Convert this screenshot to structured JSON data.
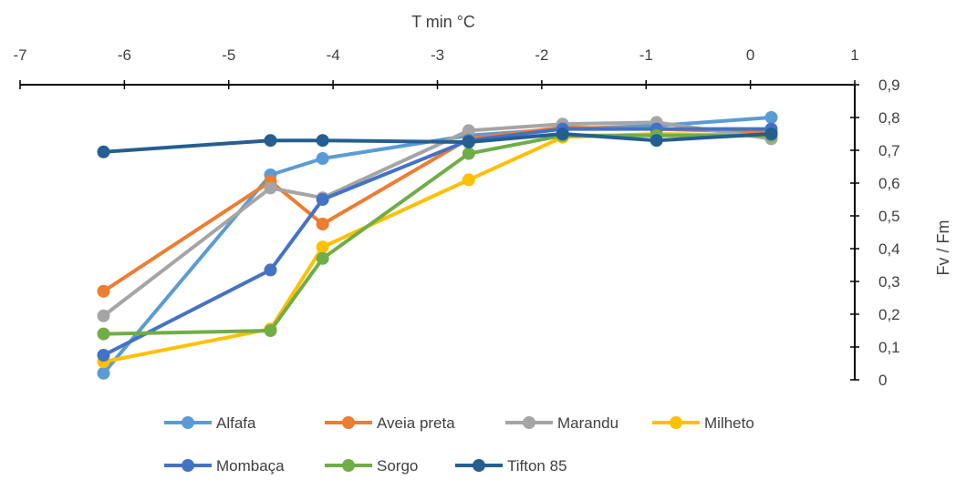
{
  "chart_data": {
    "type": "line",
    "xlabel": "T min °C",
    "ylabel": "Fv / Fm",
    "xlim": [
      -7,
      1
    ],
    "ylim": [
      0,
      0.9
    ],
    "x_ticks": [
      "-7",
      "-6",
      "-5",
      "-4",
      "-3",
      "-2",
      "-1",
      "0",
      "1"
    ],
    "y_ticks": [
      "0",
      "0,1",
      "0,2",
      "0,3",
      "0,4",
      "0,5",
      "0,6",
      "0,7",
      "0,8",
      "0,9"
    ],
    "x_axis_position": "top",
    "y_axis_position": "right",
    "grid": false,
    "legend_position": "bottom",
    "x": [
      -6.2,
      -4.6,
      -4.1,
      -2.7,
      -1.8,
      -0.9,
      0.2
    ],
    "series": [
      {
        "name": "Alfafa",
        "color": "#5B9BD5",
        "values": [
          0.02,
          0.625,
          0.675,
          0.745,
          0.765,
          0.775,
          0.8
        ]
      },
      {
        "name": "Aveia preta",
        "color": "#ED7D31",
        "values": [
          0.27,
          0.605,
          0.475,
          0.735,
          0.77,
          0.765,
          0.755
        ]
      },
      {
        "name": "Marandu",
        "color": "#A5A5A5",
        "values": [
          0.195,
          0.585,
          0.555,
          0.76,
          0.78,
          0.785,
          0.735
        ]
      },
      {
        "name": "Milheto",
        "color": "#FFC000",
        "values": [
          0.055,
          0.155,
          0.405,
          0.61,
          0.74,
          0.75,
          0.745
        ]
      },
      {
        "name": "Mombaça",
        "color": "#4472C4",
        "values": [
          0.075,
          0.335,
          0.55,
          0.73,
          0.765,
          0.765,
          0.765
        ]
      },
      {
        "name": "Sorgo",
        "color": "#70AD47",
        "values": [
          0.14,
          0.15,
          0.37,
          0.69,
          0.745,
          0.745,
          0.745
        ]
      },
      {
        "name": "Tifton 85",
        "color": "#255E91",
        "values": [
          0.695,
          0.73,
          0.73,
          0.725,
          0.75,
          0.73,
          0.75
        ]
      }
    ]
  }
}
